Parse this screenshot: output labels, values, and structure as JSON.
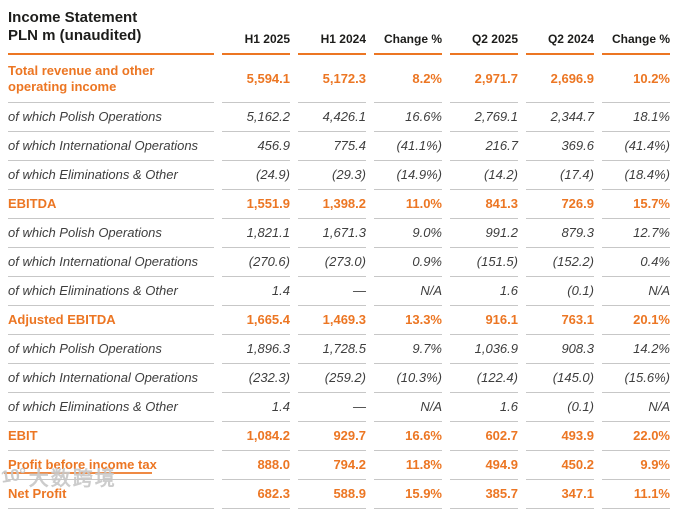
{
  "header": {
    "title_line1": "Income Statement",
    "title_line2": "PLN m (unaudited)",
    "columns": [
      "H1 2025",
      "H1 2024",
      "Change %",
      "Q2 2025",
      "Q2 2024",
      "Change %"
    ]
  },
  "rows": [
    {
      "label": "Total revenue and other operating income",
      "style": "highlight",
      "values": [
        "5,594.1",
        "5,172.3",
        "8.2%",
        "2,971.7",
        "2,696.9",
        "10.2%"
      ]
    },
    {
      "label": "of which Polish Operations",
      "style": "sub",
      "values": [
        "5,162.2",
        "4,426.1",
        "16.6%",
        "2,769.1",
        "2,344.7",
        "18.1%"
      ]
    },
    {
      "label": "of which International Operations",
      "style": "sub",
      "values": [
        "456.9",
        "775.4",
        "(41.1%)",
        "216.7",
        "369.6",
        "(41.4%)"
      ]
    },
    {
      "label": "of which Eliminations & Other",
      "style": "sub",
      "values": [
        "(24.9)",
        "(29.3)",
        "(14.9%)",
        "(14.2)",
        "(17.4)",
        "(18.4%)"
      ]
    },
    {
      "label": "EBITDA",
      "style": "highlight",
      "values": [
        "1,551.9",
        "1,398.2",
        "11.0%",
        "841.3",
        "726.9",
        "15.7%"
      ]
    },
    {
      "label": "of which Polish Operations",
      "style": "sub",
      "values": [
        "1,821.1",
        "1,671.3",
        "9.0%",
        "991.2",
        "879.3",
        "12.7%"
      ]
    },
    {
      "label": "of which International Operations",
      "style": "sub",
      "values": [
        "(270.6)",
        "(273.0)",
        "0.9%",
        "(151.5)",
        "(152.2)",
        "0.4%"
      ]
    },
    {
      "label": "of which Eliminations & Other",
      "style": "sub",
      "values": [
        "1.4",
        "—",
        "N/A",
        "1.6",
        "(0.1)",
        "N/A"
      ]
    },
    {
      "label": "Adjusted EBITDA",
      "style": "highlight",
      "values": [
        "1,665.4",
        "1,469.3",
        "13.3%",
        "916.1",
        "763.1",
        "20.1%"
      ]
    },
    {
      "label": "of which Polish Operations",
      "style": "sub",
      "values": [
        "1,896.3",
        "1,728.5",
        "9.7%",
        "1,036.9",
        "908.3",
        "14.2%"
      ]
    },
    {
      "label": "of which International Operations",
      "style": "sub",
      "values": [
        "(232.3)",
        "(259.2)",
        "(10.3%)",
        "(122.4)",
        "(145.0)",
        "(15.6%)"
      ]
    },
    {
      "label": "of which Eliminations & Other",
      "style": "sub",
      "values": [
        "1.4",
        "—",
        "N/A",
        "1.6",
        "(0.1)",
        "N/A"
      ]
    },
    {
      "label": "EBIT",
      "style": "highlight",
      "values": [
        "1,084.2",
        "929.7",
        "16.6%",
        "602.7",
        "493.9",
        "22.0%"
      ]
    },
    {
      "label": "Profit before income tax",
      "style": "highlight",
      "values": [
        "888.0",
        "794.2",
        "11.8%",
        "494.9",
        "450.2",
        "9.9%"
      ]
    },
    {
      "label": "Net Profit",
      "style": "highlight",
      "values": [
        "682.3",
        "588.9",
        "15.9%",
        "385.7",
        "347.1",
        "11.1%"
      ]
    }
  ],
  "watermark": {
    "icon_text": "10°",
    "text": "大数跨境"
  },
  "colors": {
    "accent": "#EC7623",
    "separator": "#C7C7C7",
    "sub_text": "#3E3E3E",
    "header_text": "#1D1D1B",
    "watermark": "#C8C8C8"
  }
}
